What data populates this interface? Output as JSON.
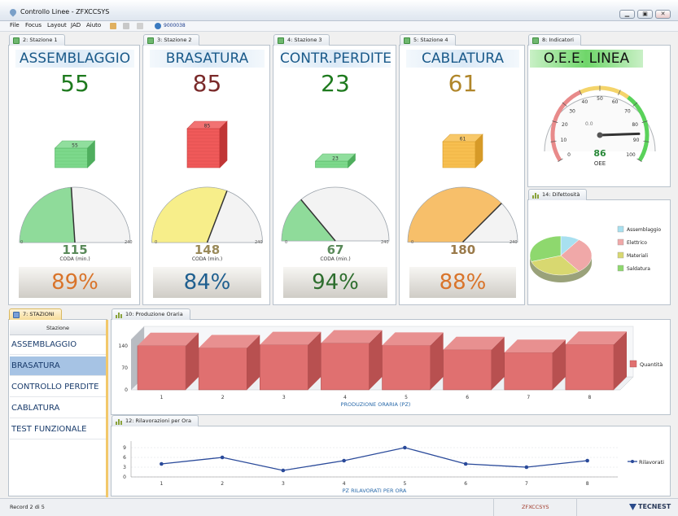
{
  "window": {
    "title": "Controllo Linee - ZFXCCSYS"
  },
  "window_buttons": {
    "minimize": "▁",
    "restore": "▣",
    "close": "✕"
  },
  "menu": {
    "file": "File",
    "focus": "Focus",
    "layout": "Layout",
    "jad": "JAD",
    "aiuto": "Aiuto",
    "counter": "9000038"
  },
  "stations": [
    {
      "tab": "2: Stazione 1",
      "name": "ASSEMBLAGGIO",
      "count": "55",
      "count_color": "#1e7a1e",
      "cube_label": "55",
      "cube_color": "#7dd98c",
      "cube_dark": "#4fae5e",
      "cube_layers": 3,
      "gauge_value": 115,
      "gauge_max": 240,
      "gauge_color": "#8fdb9a",
      "coda_value": "115",
      "coda_color": "#5a8a5a",
      "coda_label": "CODA (min.)",
      "scale_min": "0",
      "scale_max": "240",
      "pct": "89%",
      "pct_color": "#d9742a"
    },
    {
      "tab": "3: Stazione 2",
      "name": "BRASATURA",
      "count": "85",
      "count_color": "#7a2a2a",
      "cube_label": "85",
      "cube_color": "#f05a5a",
      "cube_dark": "#c03535",
      "cube_layers": 6,
      "gauge_value": 148,
      "gauge_max": 240,
      "gauge_color": "#f7ee8a",
      "coda_value": "148",
      "coda_color": "#9a8a5a",
      "coda_label": "CODA (min.)",
      "scale_min": "0",
      "scale_max": "240",
      "pct": "84%",
      "pct_color": "#1f5f8f"
    },
    {
      "tab": "4: Stazione 3",
      "name": "CONTR.PERDITE",
      "count": "23",
      "count_color": "#1e7a1e",
      "cube_label": "23",
      "cube_color": "#7dd98c",
      "cube_dark": "#4fae5e",
      "cube_layers": 1,
      "gauge_value": 67,
      "gauge_max": 240,
      "gauge_color": "#8fdb9a",
      "coda_value": "67",
      "coda_color": "#5a8a5a",
      "coda_label": "CODA (min.)",
      "scale_min": "0",
      "scale_max": "240",
      "pct": "94%",
      "pct_color": "#2e6e2e"
    },
    {
      "tab": "5: Stazione 4",
      "name": "CABLATURA",
      "count": "61",
      "count_color": "#b0862a",
      "cube_label": "61",
      "cube_color": "#f7bf50",
      "cube_dark": "#d69a28",
      "cube_layers": 4,
      "gauge_value": 180,
      "gauge_max": 240,
      "gauge_color": "#f7bf6a",
      "coda_value": "180",
      "coda_color": "#9a7a4a",
      "coda_label": "",
      "scale_min": "0",
      "scale_max": "240",
      "pct": "88%",
      "pct_color": "#d9742a"
    }
  ],
  "indicators": {
    "tab": "8: Indicatori",
    "title": "O.E.E. LINEA",
    "value": 86,
    "value_label": "86",
    "unit": "OEE",
    "center_label": "0.0",
    "ticks": [
      "0",
      "10",
      "20",
      "30",
      "40",
      "50",
      "60",
      "70",
      "80",
      "90",
      "100"
    ]
  },
  "difettosita": {
    "tab": "14: Difettosità",
    "legend": [
      {
        "label": "Assemblaggio",
        "color": "#a8e0f0",
        "value": 10
      },
      {
        "label": "Elettrico",
        "color": "#f0a8a8",
        "value": 30
      },
      {
        "label": "Materiali",
        "color": "#d8d870",
        "value": 30
      },
      {
        "label": "Saldatura",
        "color": "#8ed86e",
        "value": 30
      }
    ]
  },
  "stazioni_panel": {
    "tab": "7: STAZIONI",
    "header": "Stazione",
    "items": [
      "ASSEMBLAGGIO",
      "BRASATURA",
      "CONTROLLO PERDITE",
      "CABLATURA",
      "TEST FUNZIONALE"
    ],
    "selected_index": 1
  },
  "produzione": {
    "tab": "10: Produzione Oraria"
  },
  "rilavorazioni": {
    "tab": "12: Rilavorazioni per Ora"
  },
  "chart_data": [
    {
      "type": "bar",
      "categories": [
        "1",
        "2",
        "3",
        "4",
        "5",
        "6",
        "7",
        "8"
      ],
      "values": [
        140,
        133,
        143,
        148,
        141,
        127,
        118,
        144
      ],
      "xlabel": "PRODUZIONE ORARIA (PZ)",
      "yticks": [
        "0",
        "70",
        "140"
      ],
      "ylim": [
        0,
        160
      ],
      "series": [
        {
          "name": "Quantità",
          "color": "#e07070"
        }
      ]
    },
    {
      "type": "line",
      "categories": [
        "1",
        "2",
        "3",
        "4",
        "5",
        "6",
        "7",
        "8"
      ],
      "values": [
        4,
        6,
        2,
        5,
        9,
        4,
        3,
        5
      ],
      "xlabel": "PZ RILAVORATI PER ORA",
      "yticks": [
        "0",
        "3",
        "6",
        "9"
      ],
      "ylim": [
        0,
        10
      ],
      "series": [
        {
          "name": "Rilavorati",
          "color": "#2a4a9a"
        }
      ]
    }
  ],
  "status": {
    "record": "Record 2 di 5",
    "system": "ZFXCCSYS",
    "brand": "TECNEST"
  }
}
